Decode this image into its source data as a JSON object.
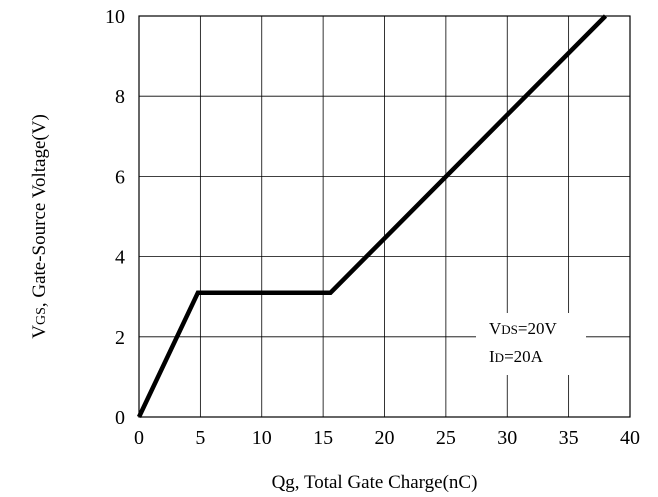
{
  "chart_data": {
    "type": "line",
    "xlabel": "Qg, Total Gate Charge(nC)",
    "ylabel": {
      "main": "V",
      "sub": "GS",
      "rest": ", Gate-Source Voltage(V)"
    },
    "xlim": [
      0,
      40
    ],
    "ylim": [
      0,
      10
    ],
    "x_ticks": [
      "0",
      "5",
      "10",
      "15",
      "20",
      "25",
      "30",
      "35",
      "40"
    ],
    "y_ticks": [
      "0",
      "2",
      "4",
      "6",
      "8",
      "10"
    ],
    "grid": true,
    "series": [
      {
        "x": [
          0,
          4.8,
          15.6,
          38
        ],
        "y": [
          0,
          3.1,
          3.1,
          10
        ],
        "color": "#000000"
      }
    ],
    "annotations": [
      {
        "main": "V",
        "sub": "DS",
        "rest": "=20V"
      },
      {
        "main": "I",
        "sub": "D",
        "rest": "=20A"
      }
    ]
  }
}
